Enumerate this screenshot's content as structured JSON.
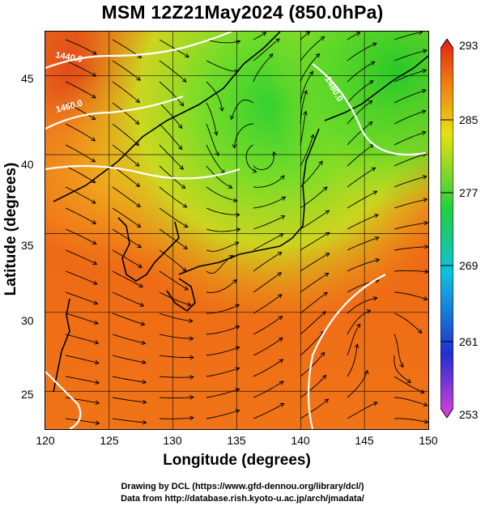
{
  "title": "MSM 12Z21May2024 (850.0hPa)",
  "x_axis": {
    "label": "Longitude (degrees)",
    "range": [
      120,
      150
    ],
    "ticks": [
      "120",
      "125",
      "130",
      "135",
      "140",
      "145",
      "150"
    ]
  },
  "y_axis": {
    "label": "Latitude  (degrees)",
    "range": [
      22.6,
      47.8
    ],
    "ticks": [
      "25",
      "30",
      "35",
      "40",
      "45"
    ]
  },
  "colorbar": {
    "range": [
      253,
      293
    ],
    "ticks": [
      "253",
      "261",
      "269",
      "277",
      "285",
      "293"
    ],
    "colors": [
      "#e040e0",
      "#2030d0",
      "#10c0e0",
      "#20d040",
      "#e8e010",
      "#f08010",
      "#e02010"
    ]
  },
  "contours": [
    {
      "label": "1440.0"
    },
    {
      "label": "1460.0"
    },
    {
      "label": "1480.0"
    }
  ],
  "credits": {
    "line1": "Drawing by DCL (https://www.gfd-dennou.org/library/dcl/)",
    "line2": "Data from http://database.rish.kyoto-u.ac.jp/arch/jmadata/"
  }
}
